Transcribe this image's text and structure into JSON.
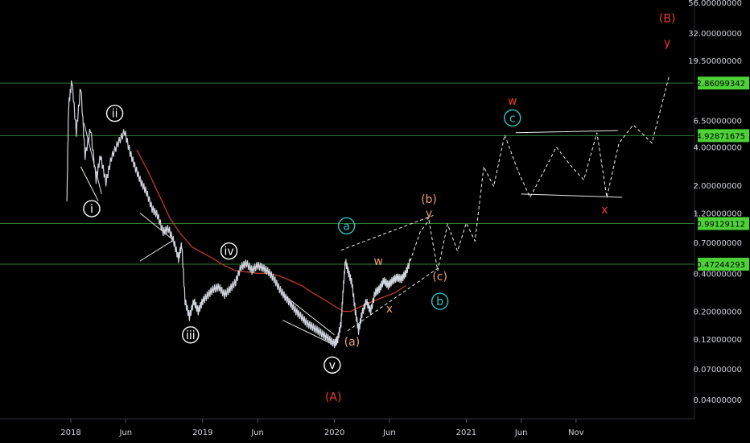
{
  "chart_data": {
    "type": "line",
    "title": "",
    "xlabel": "",
    "ylabel": "",
    "scale": "log",
    "ylim": [
      0.03,
      60
    ],
    "grid": false,
    "background": "#000000",
    "colors": {
      "text": "#d1d4dc",
      "green_line": "#2e7d32",
      "label_green": "#4cd137",
      "ma_line": "#c0392b",
      "wave_white": "#ffffff",
      "wave_orange": "#f0a070",
      "wave_cyan": "#2ec4c4",
      "wave_red": "#ef3b2c",
      "candles": "#d1d4dc"
    },
    "x_ticks": [
      {
        "label": "2018",
        "t": 0
      },
      {
        "label": "Jun",
        "t": 5
      },
      {
        "label": "2019",
        "t": 12
      },
      {
        "label": "Jun",
        "t": 17
      },
      {
        "label": "2020",
        "t": 24
      },
      {
        "label": "Jun",
        "t": 29
      },
      {
        "label": "2021",
        "t": 36
      },
      {
        "label": "Jun",
        "t": 41
      },
      {
        "label": "Nov",
        "t": 46
      }
    ],
    "y_ticks": [
      "56.00000000",
      "32.00000000",
      "19.50000000",
      "6.50000000",
      "4.00000000",
      "2.00000000",
      "1.20000000",
      "0.70000000",
      "0.40000000",
      "0.20000000",
      "0.12000000",
      "0.07000000",
      "0.04000000"
    ],
    "y_tick_values": [
      56,
      32,
      19.5,
      6.5,
      4,
      2,
      1.2,
      0.7,
      0.4,
      0.2,
      0.12,
      0.07,
      0.04
    ],
    "horizontal_levels": [
      {
        "label": "12.86099342",
        "value": 12.86099342
      },
      {
        "label": "4.92871675",
        "value": 4.92871675
      },
      {
        "label": "0.99129112",
        "value": 0.99129112
      },
      {
        "label": "0.47244293",
        "value": 0.47244293
      }
    ],
    "price_series": [
      [
        -0.35,
        1.6
      ],
      [
        -0.2,
        8.5
      ],
      [
        0.1,
        13.5
      ],
      [
        0.5,
        5.2
      ],
      [
        0.9,
        12.2
      ],
      [
        1.3,
        3.4
      ],
      [
        1.8,
        5.6
      ],
      [
        2.3,
        2.2
      ],
      [
        2.7,
        3.4
      ],
      [
        3.2,
        2.1
      ],
      [
        3.7,
        3.3
      ],
      [
        4.3,
        4.3
      ],
      [
        4.9,
        5.3
      ],
      [
        5.4,
        3.6
      ],
      [
        5.9,
        2.7
      ],
      [
        6.4,
        2.1
      ],
      [
        6.9,
        1.75
      ],
      [
        7.4,
        1.3
      ],
      [
        7.9,
        1.15
      ],
      [
        8.4,
        0.85
      ],
      [
        8.9,
        0.9
      ],
      [
        9.4,
        0.7
      ],
      [
        9.8,
        0.52
      ],
      [
        10.1,
        0.68
      ],
      [
        10.4,
        0.24
      ],
      [
        10.8,
        0.18
      ],
      [
        11.2,
        0.24
      ],
      [
        11.6,
        0.2
      ],
      [
        12.0,
        0.24
      ],
      [
        12.5,
        0.27
      ],
      [
        13.0,
        0.3
      ],
      [
        13.5,
        0.31
      ],
      [
        14.0,
        0.27
      ],
      [
        14.5,
        0.3
      ],
      [
        15.0,
        0.34
      ],
      [
        15.5,
        0.45
      ],
      [
        16.0,
        0.48
      ],
      [
        16.5,
        0.42
      ],
      [
        17.0,
        0.46
      ],
      [
        17.5,
        0.44
      ],
      [
        18.0,
        0.41
      ],
      [
        18.5,
        0.36
      ],
      [
        19.0,
        0.3
      ],
      [
        19.5,
        0.26
      ],
      [
        20.0,
        0.23
      ],
      [
        20.5,
        0.2
      ],
      [
        21.0,
        0.18
      ],
      [
        21.5,
        0.16
      ],
      [
        22.0,
        0.15
      ],
      [
        22.5,
        0.14
      ],
      [
        23.0,
        0.13
      ],
      [
        23.5,
        0.12
      ],
      [
        24.0,
        0.11
      ],
      [
        24.3,
        0.12
      ],
      [
        24.6,
        0.16
      ],
      [
        24.8,
        0.3
      ],
      [
        25.0,
        0.5
      ],
      [
        25.3,
        0.4
      ],
      [
        25.6,
        0.33
      ],
      [
        25.9,
        0.2
      ],
      [
        26.2,
        0.14
      ],
      [
        26.5,
        0.19
      ],
      [
        26.9,
        0.24
      ],
      [
        27.3,
        0.2
      ],
      [
        27.7,
        0.28
      ],
      [
        28.1,
        0.3
      ],
      [
        28.5,
        0.35
      ],
      [
        28.9,
        0.32
      ],
      [
        29.3,
        0.35
      ],
      [
        29.7,
        0.37
      ],
      [
        30.1,
        0.36
      ],
      [
        30.5,
        0.4
      ],
      [
        30.9,
        0.5
      ]
    ],
    "moving_average": [
      [
        6.0,
        3.8
      ],
      [
        7.0,
        2.6
      ],
      [
        8.0,
        1.7
      ],
      [
        9.0,
        1.1
      ],
      [
        10.0,
        0.82
      ],
      [
        11.0,
        0.65
      ],
      [
        12.0,
        0.58
      ],
      [
        13.0,
        0.52
      ],
      [
        14.0,
        0.46
      ],
      [
        15.0,
        0.42
      ],
      [
        16.0,
        0.41
      ],
      [
        17.0,
        0.4
      ],
      [
        18.0,
        0.4
      ],
      [
        19.0,
        0.38
      ],
      [
        20.0,
        0.35
      ],
      [
        21.0,
        0.32
      ],
      [
        22.0,
        0.28
      ],
      [
        23.0,
        0.25
      ],
      [
        24.0,
        0.22
      ],
      [
        24.8,
        0.2
      ],
      [
        25.5,
        0.2
      ],
      [
        26.5,
        0.22
      ],
      [
        27.5,
        0.24
      ],
      [
        28.5,
        0.26
      ],
      [
        29.5,
        0.28
      ],
      [
        30.5,
        0.32
      ]
    ],
    "projection_path": [
      [
        30.9,
        0.5
      ],
      [
        31.8,
        0.85
      ],
      [
        32.6,
        1.05
      ],
      [
        33.4,
        0.42
      ],
      [
        34.3,
        0.98
      ],
      [
        35.2,
        0.6
      ],
      [
        36.0,
        1.0
      ],
      [
        36.8,
        0.72
      ],
      [
        37.6,
        2.8
      ],
      [
        38.5,
        1.95
      ],
      [
        39.5,
        5.0
      ],
      [
        40.7,
        2.6
      ],
      [
        41.8,
        1.6
      ],
      [
        43.1,
        2.6
      ],
      [
        44.2,
        4.0
      ],
      [
        45.6,
        2.8
      ],
      [
        46.7,
        2.2
      ],
      [
        47.9,
        5.2
      ],
      [
        48.8,
        1.6
      ],
      [
        49.9,
        4.3
      ],
      [
        51.2,
        6.0
      ],
      [
        52.9,
        4.3
      ],
      [
        54.5,
        15.0
      ]
    ],
    "trend_lines": [
      {
        "from": [
          1.2,
          6.2
        ],
        "to": [
          2.8,
          1.7
        ]
      },
      {
        "from": [
          0.9,
          2.8
        ],
        "to": [
          2.5,
          1.5
        ]
      },
      {
        "from": [
          6.3,
          1.2
        ],
        "to": [
          9.2,
          0.75
        ]
      },
      {
        "from": [
          6.3,
          0.5
        ],
        "to": [
          9.2,
          0.72
        ]
      },
      {
        "from": [
          19.6,
          0.26
        ],
        "to": [
          24.0,
          0.13
        ]
      },
      {
        "from": [
          19.3,
          0.17
        ],
        "to": [
          23.8,
          0.11
        ]
      },
      {
        "from": [
          24.6,
          0.61
        ],
        "to": [
          33.0,
          1.15
        ]
      },
      {
        "from": [
          25.2,
          0.14
        ],
        "to": [
          33.6,
          0.45
        ]
      },
      {
        "from": [
          40.5,
          5.2
        ],
        "to": [
          49.8,
          5.4
        ]
      },
      {
        "from": [
          41.0,
          1.7
        ],
        "to": [
          50.2,
          1.6
        ]
      }
    ],
    "wave_labels": [
      {
        "text": "i",
        "t": 1.9,
        "value": 1.3,
        "style": "circle-white"
      },
      {
        "text": "ii",
        "t": 4.0,
        "value": 7.4,
        "style": "circle-white"
      },
      {
        "text": "iii",
        "t": 10.9,
        "value": 0.13,
        "style": "circle-white"
      },
      {
        "text": "iv",
        "t": 14.4,
        "value": 0.6,
        "style": "circle-white"
      },
      {
        "text": "v",
        "t": 23.8,
        "value": 0.075,
        "style": "circle-white"
      },
      {
        "text": "(A)",
        "t": 23.9,
        "value": 0.042,
        "style": "red"
      },
      {
        "text": "a",
        "t": 25.1,
        "value": 0.95,
        "style": "circle-cyan"
      },
      {
        "text": "(a)",
        "t": 25.6,
        "value": 0.115,
        "style": "orange"
      },
      {
        "text": "w",
        "t": 28.0,
        "value": 0.5,
        "style": "orange"
      },
      {
        "text": "x",
        "t": 29.0,
        "value": 0.21,
        "style": "orange"
      },
      {
        "text": "(b)",
        "t": 32.6,
        "value": 1.55,
        "style": "orange"
      },
      {
        "text": "y",
        "t": 32.6,
        "value": 1.2,
        "style": "orange"
      },
      {
        "text": "(c)",
        "t": 33.6,
        "value": 0.38,
        "style": "orange"
      },
      {
        "text": "b",
        "t": 33.6,
        "value": 0.24,
        "style": "circle-cyan"
      },
      {
        "text": "w",
        "t": 40.2,
        "value": 9.3,
        "style": "red"
      },
      {
        "text": "c",
        "t": 40.2,
        "value": 6.8,
        "style": "circle-cyan"
      },
      {
        "text": "x",
        "t": 48.6,
        "value": 1.28,
        "style": "red"
      },
      {
        "text": "(B)",
        "t": 54.3,
        "value": 42,
        "style": "red"
      },
      {
        "text": "y",
        "t": 54.3,
        "value": 27,
        "style": "red"
      }
    ]
  }
}
